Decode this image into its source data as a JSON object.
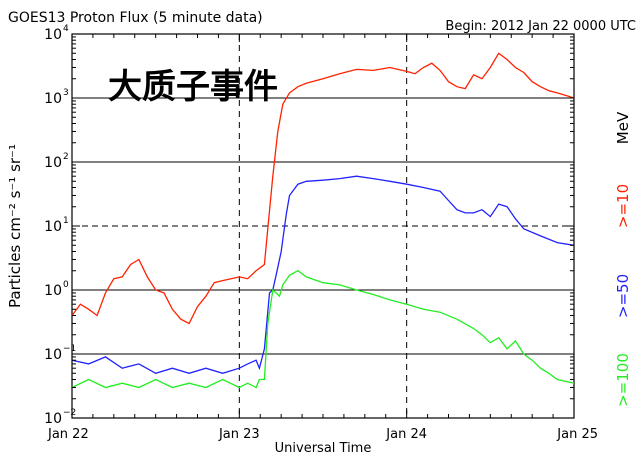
{
  "title": "GOES13 Proton Flux (5 minute data)",
  "begin_label": "Begin: 2012 Jan 22 0000 UTC",
  "annotation": "大质子事件",
  "chart_data": {
    "type": "line",
    "title": "GOES13 Proton Flux (5 minute data)",
    "xlabel": "Universal Time",
    "ylabel": "Particles cm⁻² s⁻¹ sr⁻¹",
    "ylog": true,
    "xlim": [
      0,
      3
    ],
    "ylim": [
      0.01,
      10000
    ],
    "x_unit": "days since 2012 Jan 22 0000 UTC",
    "x_ticks": [
      {
        "x": 0,
        "label": "Jan 22"
      },
      {
        "x": 1,
        "label": "Jan 23"
      },
      {
        "x": 2,
        "label": "Jan 24"
      },
      {
        "x": 3,
        "label": "Jan 25"
      }
    ],
    "y_ticks": [
      {
        "exp": -2
      },
      {
        "exp": -1
      },
      {
        "exp": 0
      },
      {
        "exp": 1
      },
      {
        "exp": 2
      },
      {
        "exp": 3
      },
      {
        "exp": 4
      }
    ],
    "y_tick_base": "10",
    "gridlines": [
      {
        "y": 1000,
        "style": "solid"
      },
      {
        "y": 100,
        "style": "solid"
      },
      {
        "y": 10,
        "style": "dashed"
      },
      {
        "y": 1,
        "style": "solid"
      },
      {
        "y": 0.1,
        "style": "solid"
      }
    ],
    "right_labels": [
      "MeV",
      ">=10",
      ">=50",
      ">=100"
    ],
    "right_label_colors": [
      "#000000",
      "#ff2200",
      "#2222ff",
      "#22ee22"
    ],
    "series": [
      {
        "name": ">=10 MeV",
        "color": "#ff2200",
        "points": [
          [
            0,
            0.4
          ],
          [
            0.05,
            0.6
          ],
          [
            0.1,
            0.5
          ],
          [
            0.15,
            0.4
          ],
          [
            0.2,
            0.9
          ],
          [
            0.25,
            1.5
          ],
          [
            0.3,
            1.6
          ],
          [
            0.35,
            2.5
          ],
          [
            0.4,
            3.0
          ],
          [
            0.45,
            1.6
          ],
          [
            0.5,
            1.0
          ],
          [
            0.55,
            0.9
          ],
          [
            0.6,
            0.5
          ],
          [
            0.65,
            0.35
          ],
          [
            0.7,
            0.3
          ],
          [
            0.75,
            0.55
          ],
          [
            0.8,
            0.8
          ],
          [
            0.85,
            1.3
          ],
          [
            0.9,
            1.4
          ],
          [
            0.95,
            1.5
          ],
          [
            1.0,
            1.6
          ],
          [
            1.05,
            1.5
          ],
          [
            1.1,
            2.0
          ],
          [
            1.15,
            2.5
          ],
          [
            1.2,
            60
          ],
          [
            1.23,
            300
          ],
          [
            1.26,
            800
          ],
          [
            1.3,
            1200
          ],
          [
            1.35,
            1500
          ],
          [
            1.4,
            1700
          ],
          [
            1.5,
            2000
          ],
          [
            1.6,
            2400
          ],
          [
            1.7,
            2800
          ],
          [
            1.8,
            2700
          ],
          [
            1.9,
            3000
          ],
          [
            2.0,
            2600
          ],
          [
            2.05,
            2400
          ],
          [
            2.1,
            3000
          ],
          [
            2.15,
            3500
          ],
          [
            2.2,
            2700
          ],
          [
            2.25,
            1800
          ],
          [
            2.3,
            1500
          ],
          [
            2.35,
            1400
          ],
          [
            2.4,
            2300
          ],
          [
            2.45,
            2000
          ],
          [
            2.5,
            3000
          ],
          [
            2.55,
            5000
          ],
          [
            2.6,
            4000
          ],
          [
            2.65,
            3000
          ],
          [
            2.7,
            2500
          ],
          [
            2.75,
            1800
          ],
          [
            2.8,
            1500
          ],
          [
            2.85,
            1300
          ],
          [
            2.9,
            1200
          ],
          [
            2.95,
            1100
          ],
          [
            3.0,
            1000
          ]
        ]
      },
      {
        "name": ">=50 MeV",
        "color": "#2222ff",
        "points": [
          [
            0,
            0.08
          ],
          [
            0.1,
            0.07
          ],
          [
            0.2,
            0.09
          ],
          [
            0.3,
            0.06
          ],
          [
            0.4,
            0.07
          ],
          [
            0.5,
            0.05
          ],
          [
            0.6,
            0.06
          ],
          [
            0.7,
            0.05
          ],
          [
            0.8,
            0.06
          ],
          [
            0.9,
            0.05
          ],
          [
            1.0,
            0.06
          ],
          [
            1.05,
            0.07
          ],
          [
            1.1,
            0.08
          ],
          [
            1.12,
            0.06
          ],
          [
            1.15,
            0.12
          ],
          [
            1.18,
            0.9
          ],
          [
            1.2,
            1.0
          ],
          [
            1.22,
            1.7
          ],
          [
            1.25,
            4
          ],
          [
            1.28,
            15
          ],
          [
            1.3,
            30
          ],
          [
            1.35,
            45
          ],
          [
            1.4,
            50
          ],
          [
            1.5,
            52
          ],
          [
            1.6,
            55
          ],
          [
            1.7,
            60
          ],
          [
            1.8,
            55
          ],
          [
            1.9,
            50
          ],
          [
            2.0,
            45
          ],
          [
            2.1,
            40
          ],
          [
            2.2,
            35
          ],
          [
            2.25,
            25
          ],
          [
            2.3,
            18
          ],
          [
            2.35,
            16
          ],
          [
            2.4,
            16
          ],
          [
            2.45,
            18
          ],
          [
            2.5,
            14
          ],
          [
            2.55,
            22
          ],
          [
            2.6,
            20
          ],
          [
            2.65,
            13
          ],
          [
            2.7,
            9
          ],
          [
            2.8,
            7
          ],
          [
            2.9,
            5.5
          ],
          [
            3.0,
            5
          ]
        ]
      },
      {
        "name": ">=100 MeV",
        "color": "#22ee22",
        "points": [
          [
            0,
            0.03
          ],
          [
            0.1,
            0.04
          ],
          [
            0.2,
            0.03
          ],
          [
            0.3,
            0.035
          ],
          [
            0.4,
            0.03
          ],
          [
            0.5,
            0.04
          ],
          [
            0.6,
            0.03
          ],
          [
            0.7,
            0.035
          ],
          [
            0.8,
            0.03
          ],
          [
            0.9,
            0.04
          ],
          [
            1.0,
            0.03
          ],
          [
            1.05,
            0.035
          ],
          [
            1.1,
            0.03
          ],
          [
            1.12,
            0.04
          ],
          [
            1.15,
            0.04
          ],
          [
            1.17,
            0.3
          ],
          [
            1.2,
            1.0
          ],
          [
            1.22,
            0.9
          ],
          [
            1.24,
            0.8
          ],
          [
            1.26,
            1.2
          ],
          [
            1.3,
            1.7
          ],
          [
            1.35,
            2.0
          ],
          [
            1.4,
            1.6
          ],
          [
            1.5,
            1.3
          ],
          [
            1.6,
            1.2
          ],
          [
            1.7,
            1.0
          ],
          [
            1.8,
            0.85
          ],
          [
            1.9,
            0.7
          ],
          [
            2.0,
            0.6
          ],
          [
            2.1,
            0.5
          ],
          [
            2.2,
            0.45
          ],
          [
            2.3,
            0.35
          ],
          [
            2.4,
            0.25
          ],
          [
            2.45,
            0.2
          ],
          [
            2.5,
            0.15
          ],
          [
            2.55,
            0.18
          ],
          [
            2.6,
            0.12
          ],
          [
            2.65,
            0.16
          ],
          [
            2.7,
            0.1
          ],
          [
            2.75,
            0.08
          ],
          [
            2.8,
            0.06
          ],
          [
            2.85,
            0.05
          ],
          [
            2.9,
            0.04
          ],
          [
            3.0,
            0.035
          ]
        ]
      }
    ]
  }
}
